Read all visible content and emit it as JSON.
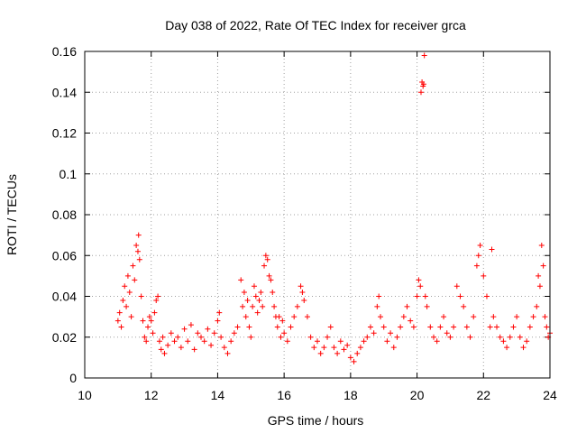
{
  "chart_data": {
    "type": "scatter",
    "title": "Day 038 of 2022, Rate Of TEC Index for receiver grca",
    "xlabel": "GPS time / hours",
    "ylabel": "ROTI / TECUs",
    "xlim": [
      10,
      24
    ],
    "ylim": [
      0,
      0.16
    ],
    "xticks": [
      10,
      12,
      14,
      16,
      18,
      20,
      22,
      24
    ],
    "yticks": [
      0,
      0.02,
      0.04,
      0.06,
      0.08,
      0.1,
      0.12,
      0.14,
      0.16
    ],
    "ytick_labels": [
      "0",
      "0.02",
      "0.04",
      "0.06",
      "0.08",
      "0.1",
      "0.12",
      "0.14",
      "0.16"
    ],
    "grid": true,
    "marker": "plus",
    "color": "#ff0000",
    "points": [
      [
        11.0,
        0.028
      ],
      [
        11.05,
        0.032
      ],
      [
        11.1,
        0.025
      ],
      [
        11.15,
        0.038
      ],
      [
        11.2,
        0.045
      ],
      [
        11.25,
        0.035
      ],
      [
        11.3,
        0.05
      ],
      [
        11.35,
        0.042
      ],
      [
        11.4,
        0.03
      ],
      [
        11.45,
        0.055
      ],
      [
        11.5,
        0.048
      ],
      [
        11.55,
        0.065
      ],
      [
        11.6,
        0.062
      ],
      [
        11.62,
        0.07
      ],
      [
        11.65,
        0.058
      ],
      [
        11.7,
        0.04
      ],
      [
        11.75,
        0.028
      ],
      [
        11.8,
        0.02
      ],
      [
        11.85,
        0.018
      ],
      [
        11.9,
        0.025
      ],
      [
        11.95,
        0.03
      ],
      [
        12.0,
        0.028
      ],
      [
        12.05,
        0.022
      ],
      [
        12.1,
        0.032
      ],
      [
        12.15,
        0.038
      ],
      [
        12.2,
        0.04
      ],
      [
        12.25,
        0.018
      ],
      [
        12.3,
        0.014
      ],
      [
        12.35,
        0.02
      ],
      [
        12.4,
        0.012
      ],
      [
        12.5,
        0.016
      ],
      [
        12.6,
        0.022
      ],
      [
        12.7,
        0.018
      ],
      [
        12.8,
        0.02
      ],
      [
        12.9,
        0.015
      ],
      [
        13.0,
        0.024
      ],
      [
        13.1,
        0.018
      ],
      [
        13.2,
        0.026
      ],
      [
        13.3,
        0.014
      ],
      [
        13.4,
        0.022
      ],
      [
        13.5,
        0.02
      ],
      [
        13.6,
        0.018
      ],
      [
        13.7,
        0.024
      ],
      [
        13.8,
        0.016
      ],
      [
        13.9,
        0.022
      ],
      [
        14.0,
        0.028
      ],
      [
        14.05,
        0.032
      ],
      [
        14.1,
        0.02
      ],
      [
        14.2,
        0.015
      ],
      [
        14.3,
        0.012
      ],
      [
        14.4,
        0.018
      ],
      [
        14.5,
        0.022
      ],
      [
        14.6,
        0.025
      ],
      [
        14.7,
        0.048
      ],
      [
        14.75,
        0.035
      ],
      [
        14.8,
        0.042
      ],
      [
        14.85,
        0.03
      ],
      [
        14.9,
        0.038
      ],
      [
        14.95,
        0.025
      ],
      [
        15.0,
        0.02
      ],
      [
        15.05,
        0.035
      ],
      [
        15.1,
        0.045
      ],
      [
        15.15,
        0.04
      ],
      [
        15.2,
        0.032
      ],
      [
        15.25,
        0.038
      ],
      [
        15.3,
        0.042
      ],
      [
        15.35,
        0.035
      ],
      [
        15.4,
        0.055
      ],
      [
        15.45,
        0.06
      ],
      [
        15.5,
        0.058
      ],
      [
        15.55,
        0.05
      ],
      [
        15.6,
        0.048
      ],
      [
        15.65,
        0.042
      ],
      [
        15.7,
        0.035
      ],
      [
        15.75,
        0.03
      ],
      [
        15.8,
        0.025
      ],
      [
        15.85,
        0.03
      ],
      [
        15.9,
        0.02
      ],
      [
        15.95,
        0.028
      ],
      [
        16.0,
        0.022
      ],
      [
        16.1,
        0.018
      ],
      [
        16.2,
        0.025
      ],
      [
        16.3,
        0.03
      ],
      [
        16.4,
        0.035
      ],
      [
        16.5,
        0.045
      ],
      [
        16.55,
        0.042
      ],
      [
        16.6,
        0.038
      ],
      [
        16.7,
        0.03
      ],
      [
        16.8,
        0.02
      ],
      [
        16.9,
        0.015
      ],
      [
        17.0,
        0.018
      ],
      [
        17.1,
        0.012
      ],
      [
        17.2,
        0.015
      ],
      [
        17.3,
        0.02
      ],
      [
        17.4,
        0.025
      ],
      [
        17.5,
        0.015
      ],
      [
        17.6,
        0.012
      ],
      [
        17.7,
        0.018
      ],
      [
        17.8,
        0.014
      ],
      [
        17.9,
        0.016
      ],
      [
        18.0,
        0.01
      ],
      [
        18.1,
        0.008
      ],
      [
        18.2,
        0.012
      ],
      [
        18.3,
        0.015
      ],
      [
        18.4,
        0.018
      ],
      [
        18.5,
        0.02
      ],
      [
        18.6,
        0.025
      ],
      [
        18.7,
        0.022
      ],
      [
        18.8,
        0.035
      ],
      [
        18.85,
        0.04
      ],
      [
        18.9,
        0.03
      ],
      [
        19.0,
        0.025
      ],
      [
        19.1,
        0.018
      ],
      [
        19.2,
        0.022
      ],
      [
        19.3,
        0.015
      ],
      [
        19.4,
        0.02
      ],
      [
        19.5,
        0.025
      ],
      [
        19.6,
        0.03
      ],
      [
        19.7,
        0.035
      ],
      [
        19.8,
        0.028
      ],
      [
        19.9,
        0.025
      ],
      [
        20.0,
        0.04
      ],
      [
        20.05,
        0.048
      ],
      [
        20.1,
        0.045
      ],
      [
        20.12,
        0.14
      ],
      [
        20.15,
        0.145
      ],
      [
        20.18,
        0.143
      ],
      [
        20.2,
        0.144
      ],
      [
        20.22,
        0.158
      ],
      [
        20.25,
        0.04
      ],
      [
        20.3,
        0.035
      ],
      [
        20.4,
        0.025
      ],
      [
        20.5,
        0.02
      ],
      [
        20.6,
        0.018
      ],
      [
        20.7,
        0.025
      ],
      [
        20.8,
        0.03
      ],
      [
        20.9,
        0.022
      ],
      [
        21.0,
        0.02
      ],
      [
        21.1,
        0.025
      ],
      [
        21.2,
        0.045
      ],
      [
        21.3,
        0.04
      ],
      [
        21.4,
        0.035
      ],
      [
        21.5,
        0.025
      ],
      [
        21.6,
        0.02
      ],
      [
        21.7,
        0.03
      ],
      [
        21.8,
        0.055
      ],
      [
        21.85,
        0.06
      ],
      [
        21.9,
        0.065
      ],
      [
        22.0,
        0.05
      ],
      [
        22.1,
        0.04
      ],
      [
        22.2,
        0.025
      ],
      [
        22.25,
        0.063
      ],
      [
        22.3,
        0.03
      ],
      [
        22.4,
        0.025
      ],
      [
        22.5,
        0.02
      ],
      [
        22.6,
        0.018
      ],
      [
        22.7,
        0.015
      ],
      [
        22.8,
        0.02
      ],
      [
        22.9,
        0.025
      ],
      [
        23.0,
        0.03
      ],
      [
        23.1,
        0.02
      ],
      [
        23.2,
        0.015
      ],
      [
        23.3,
        0.018
      ],
      [
        23.4,
        0.025
      ],
      [
        23.5,
        0.03
      ],
      [
        23.6,
        0.035
      ],
      [
        23.65,
        0.05
      ],
      [
        23.7,
        0.045
      ],
      [
        23.75,
        0.065
      ],
      [
        23.8,
        0.055
      ],
      [
        23.85,
        0.03
      ],
      [
        23.9,
        0.025
      ],
      [
        23.95,
        0.02
      ],
      [
        24.0,
        0.022
      ]
    ]
  }
}
